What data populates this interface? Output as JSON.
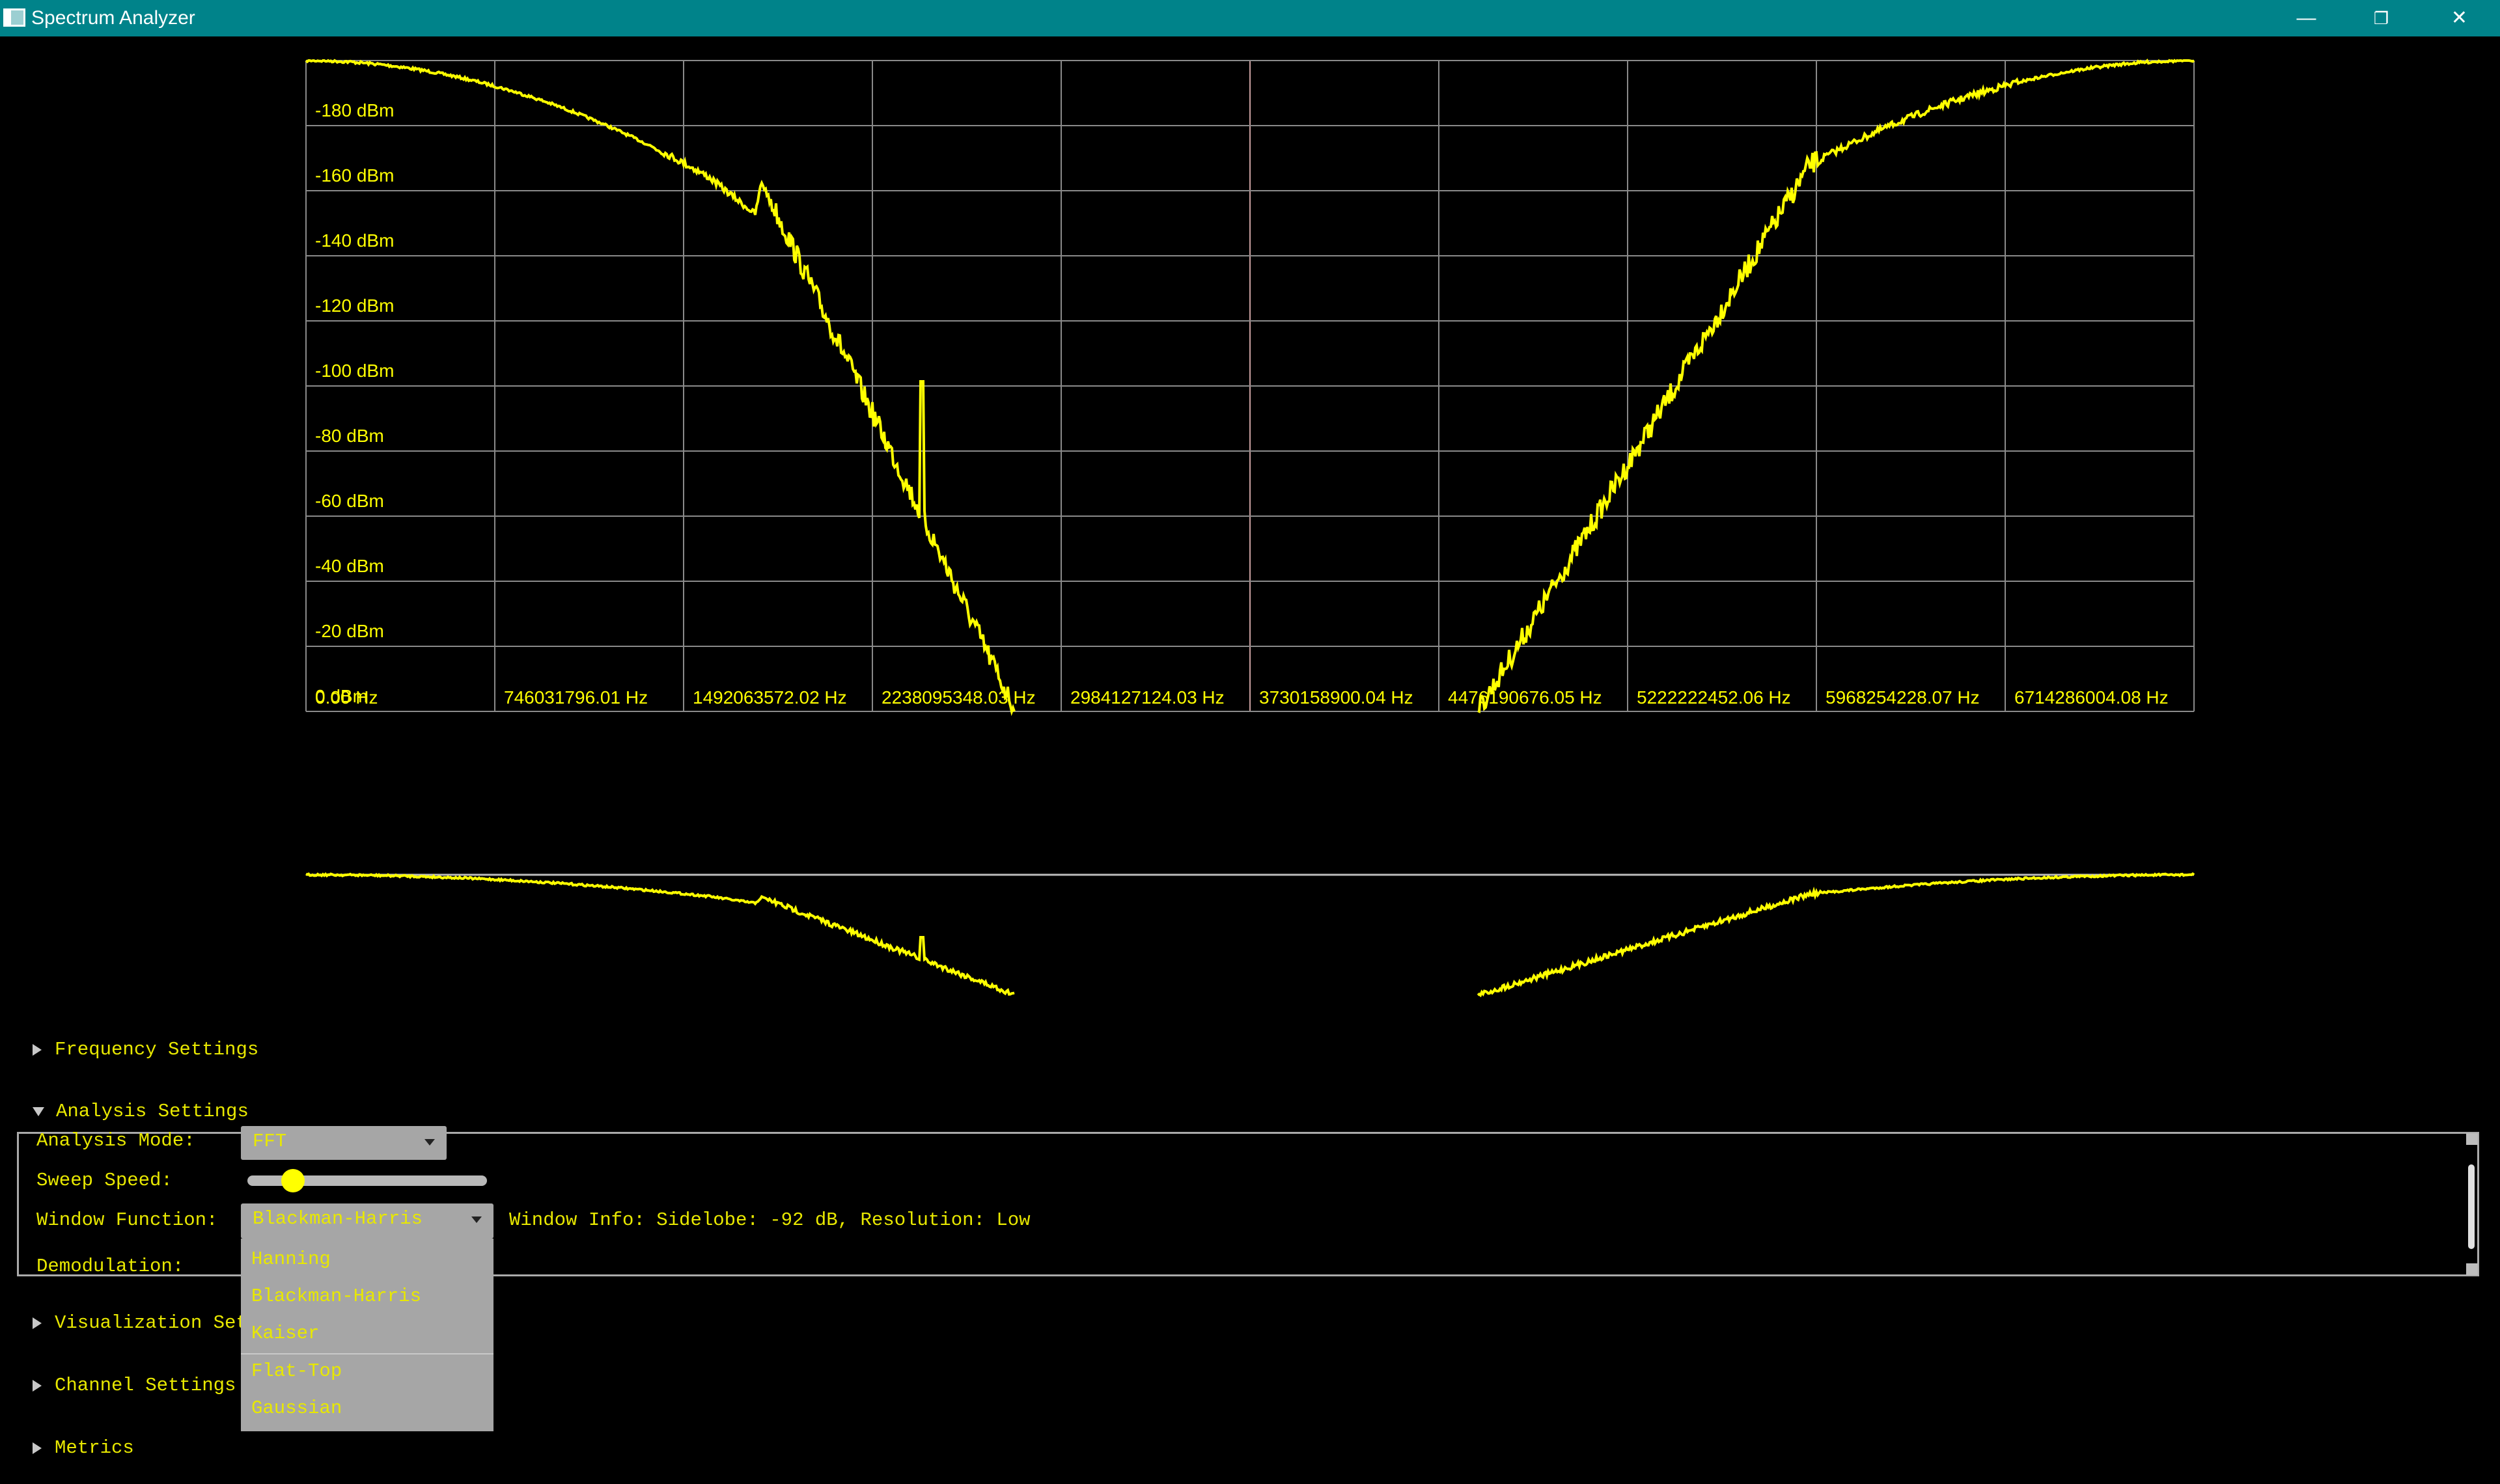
{
  "window": {
    "title": "Spectrum Analyzer",
    "minimize_glyph": "—",
    "maximize_glyph": "❐",
    "close_glyph": "✕"
  },
  "spectrum": {
    "y_labels": [
      "-180 dBm",
      "-160 dBm",
      "-140 dBm",
      "-120 dBm",
      "-100 dBm",
      "-80 dBm",
      "-60 dBm",
      "-40 dBm",
      "-20 dBm",
      "0 dBm"
    ],
    "x_labels": [
      "0.00 Hz",
      "746031796.01 Hz",
      "1492063572.02 Hz",
      "2238095348.03 Hz",
      "2984127124.03 Hz",
      "3730158900.04 Hz",
      "4476190676.05 Hz",
      "5222222452.06 Hz",
      "5968254228.07 Hz",
      "6714286004.08 Hz"
    ],
    "trace_color": "#ffff00",
    "grid_color": "#8a8a8a"
  },
  "sections": {
    "frequency": "Frequency Settings",
    "analysis": "Analysis Settings",
    "visualization": "Visualization Settings",
    "channel": "Channel Settings",
    "metrics": "Metrics"
  },
  "analysis": {
    "mode_label": "Analysis Mode:",
    "mode_value": "FFT",
    "sweep_label": "Sweep Speed:",
    "sweep_value": 0.19,
    "window_label": "Window Function:",
    "window_value": "Blackman-Harris",
    "window_info": "Window Info: Sidelobe: -92 dB, Resolution: Low",
    "demod_label": "Demodulation:",
    "window_options": [
      "Hanning",
      "Blackman-Harris",
      "Kaiser",
      "Flat-Top",
      "Gaussian"
    ]
  }
}
